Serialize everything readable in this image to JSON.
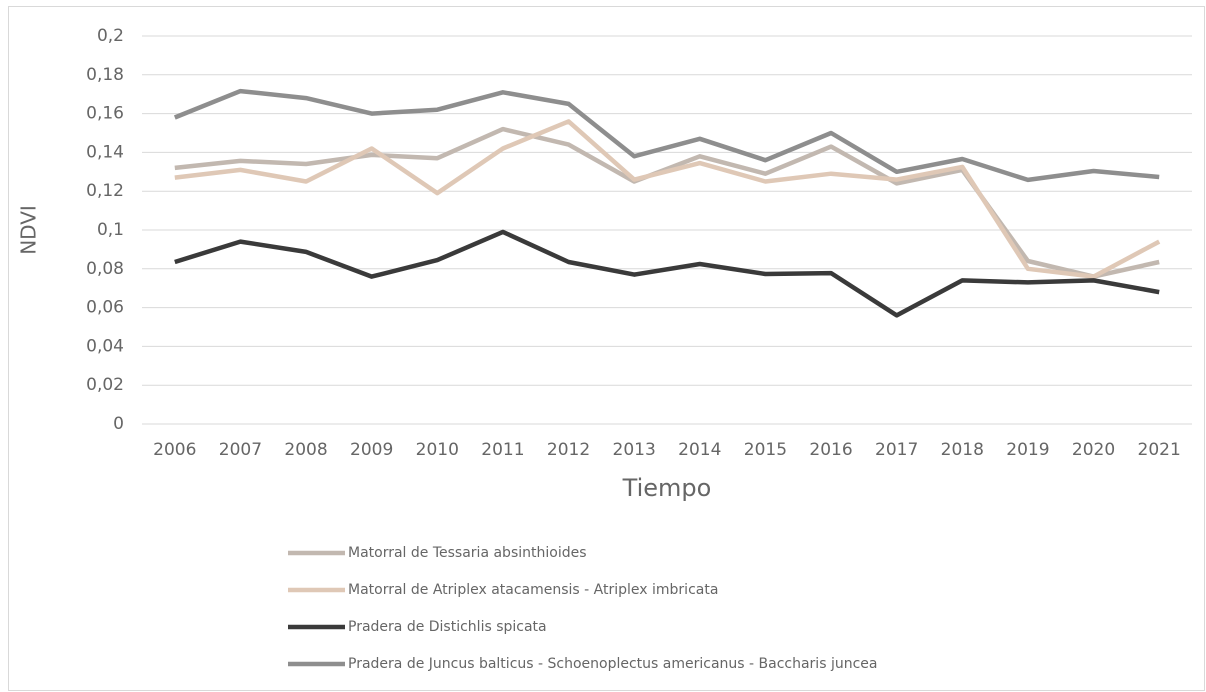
{
  "chart_data": {
    "type": "line",
    "y_label": "NDVI",
    "x_label": "Tiempo",
    "categories": [
      "2006",
      "2007",
      "2008",
      "2009",
      "2010",
      "2011",
      "2012",
      "2013",
      "2014",
      "2015",
      "2016",
      "2017",
      "2018",
      "2019",
      "2020",
      "2021"
    ],
    "series": [
      {
        "name": "Matorral de Tessaria absinthioides",
        "color": "#c2b8b0",
        "values": [
          0.132,
          0.1356,
          0.134,
          0.1387,
          0.137,
          0.152,
          0.144,
          0.125,
          0.138,
          0.129,
          0.143,
          0.124,
          0.131,
          0.084,
          0.076,
          0.0835
        ]
      },
      {
        "name": "Matorral de Atriplex atacamensis - Atriplex imbricata",
        "color": "#dfc8b6",
        "values": [
          0.127,
          0.131,
          0.125,
          0.142,
          0.119,
          0.142,
          0.156,
          0.126,
          0.1345,
          0.125,
          0.129,
          0.126,
          0.1325,
          0.08,
          0.076,
          0.094
        ]
      },
      {
        "name": "Pradera de Distichlis spicata",
        "color": "#3a3a3a",
        "values": [
          0.0835,
          0.094,
          0.0887,
          0.076,
          0.0845,
          0.099,
          0.0835,
          0.077,
          0.0825,
          0.0773,
          0.0778,
          0.056,
          0.074,
          0.073,
          0.074,
          0.068
        ]
      },
      {
        "name": "Pradera de Juncus balticus - Schoenoplectus americanus - Baccharis juncea",
        "color": "#8e8e8e",
        "values": [
          0.158,
          0.1716,
          0.168,
          0.16,
          0.162,
          0.171,
          0.165,
          0.138,
          0.147,
          0.136,
          0.15,
          0.13,
          0.1366,
          0.1258,
          0.1304,
          0.1273
        ]
      }
    ],
    "ylim": [
      0,
      0.2
    ],
    "yticks": [
      0,
      {
        "value": 0.02,
        "label": "0,02"
      },
      {
        "value": 0.04,
        "label": "0,04"
      },
      {
        "value": 0.06,
        "label": "0,06"
      },
      {
        "value": 0.08,
        "label": "0,08"
      },
      {
        "value": 0.1,
        "label": "0,1"
      },
      {
        "value": 0.12,
        "label": "0,12"
      },
      {
        "value": 0.14,
        "label": "0,14"
      },
      {
        "value": 0.16,
        "label": "0,16"
      },
      {
        "value": 0.18,
        "label": "0,18"
      },
      {
        "value": 0.2,
        "label": "0,2"
      }
    ],
    "grid": true,
    "legend": "bottom"
  }
}
